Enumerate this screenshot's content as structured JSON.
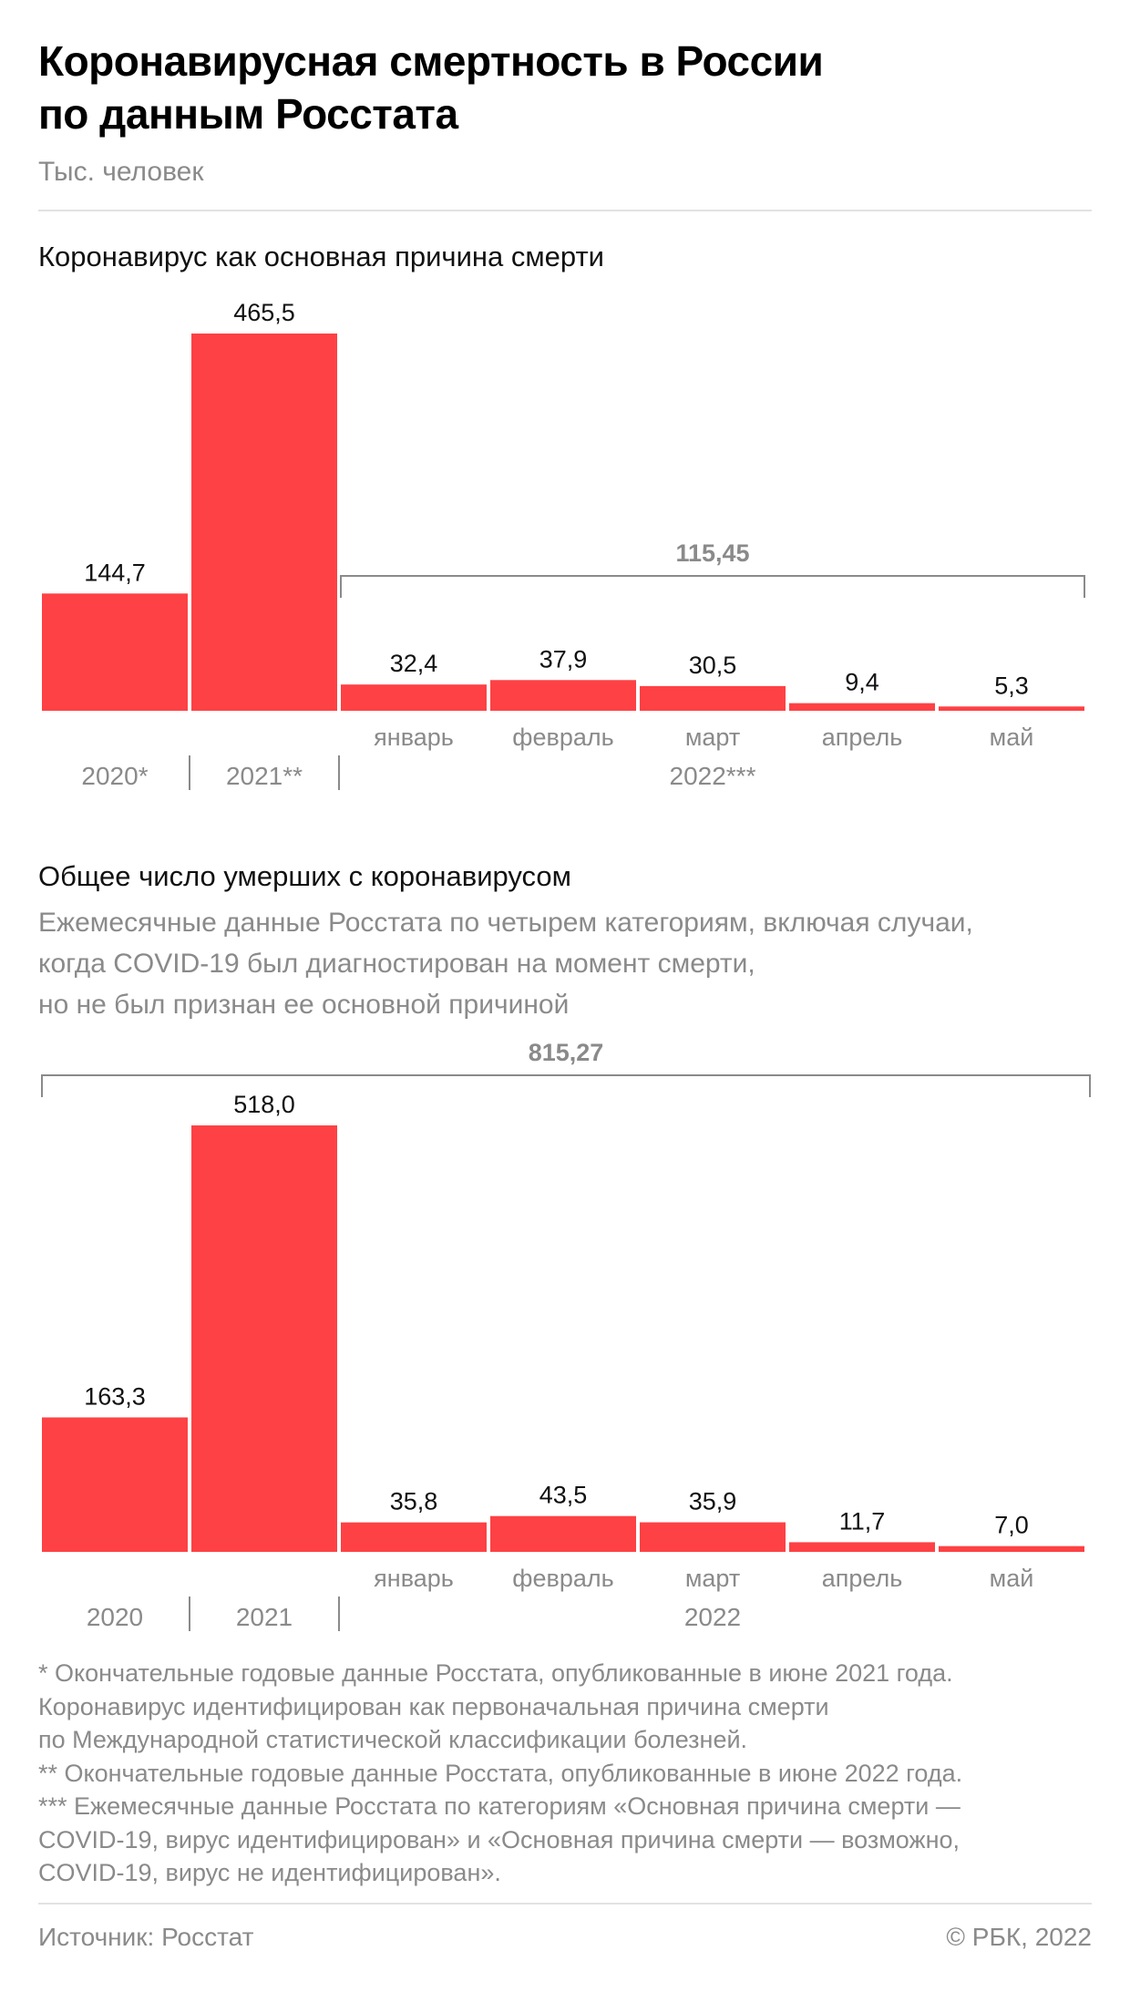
{
  "title_line1": "Коронавирусная смертность в России",
  "title_line2": "по данным Росстата",
  "subtitle": "Тыс. человек",
  "chart_data": [
    {
      "type": "bar",
      "title": "Коронавирус как основная причина смерти",
      "categories": [
        "2020*",
        "2021**",
        "январь",
        "февраль",
        "март",
        "апрель",
        "май"
      ],
      "category_groups": [
        "2020*",
        "2021**",
        "2022***"
      ],
      "values": [
        144.7,
        465.5,
        32.4,
        37.9,
        30.5,
        9.4,
        5.3
      ],
      "value_labels": [
        "144,7",
        "465,5",
        "32,4",
        "37,9",
        "30,5",
        "9,4",
        "5,3"
      ],
      "bracket_label": "115,45",
      "bar_color": "#fe4144",
      "grid": false
    },
    {
      "type": "bar",
      "title": "Общее число умерших с коронавирусом",
      "subtitle_lines": [
        "Ежемесячные данные Росстата по четырем категориям, включая случаи,",
        "когда COVID-19 был диагностирован на момент смерти,",
        "но не был признан ее основной причиной"
      ],
      "categories": [
        "2020",
        "2021",
        "январь",
        "февраль",
        "март",
        "апрель",
        "май"
      ],
      "category_groups": [
        "2020",
        "2021",
        "2022"
      ],
      "values": [
        163.3,
        518.0,
        35.8,
        43.5,
        35.9,
        11.7,
        7.0
      ],
      "value_labels": [
        "163,3",
        "518,0",
        "35,8",
        "43,5",
        "35,9",
        "11,7",
        "7,0"
      ],
      "bracket_label": "815,27",
      "bar_color": "#fe4144",
      "grid": false
    }
  ],
  "footnotes": [
    "* Окончательные годовые данные Росстата, опубликованные в июне 2021 года.",
    "Коронавирус идентифицирован как первоначальная причина смерти",
    "по Международной статистической классификации болезней.",
    "** Окончательные годовые данные Росстата, опубликованные в июне 2022 года.",
    "*** Ежемесячные данные Росстата по категориям «Основная причина смерти —",
    "COVID-19, вирус идентифицирован» и «Основная причина смерти — возможно,",
    "COVID-19, вирус не идентифицирован»."
  ],
  "source": "Источник: Росстат",
  "copyright": "© РБК, 2022"
}
